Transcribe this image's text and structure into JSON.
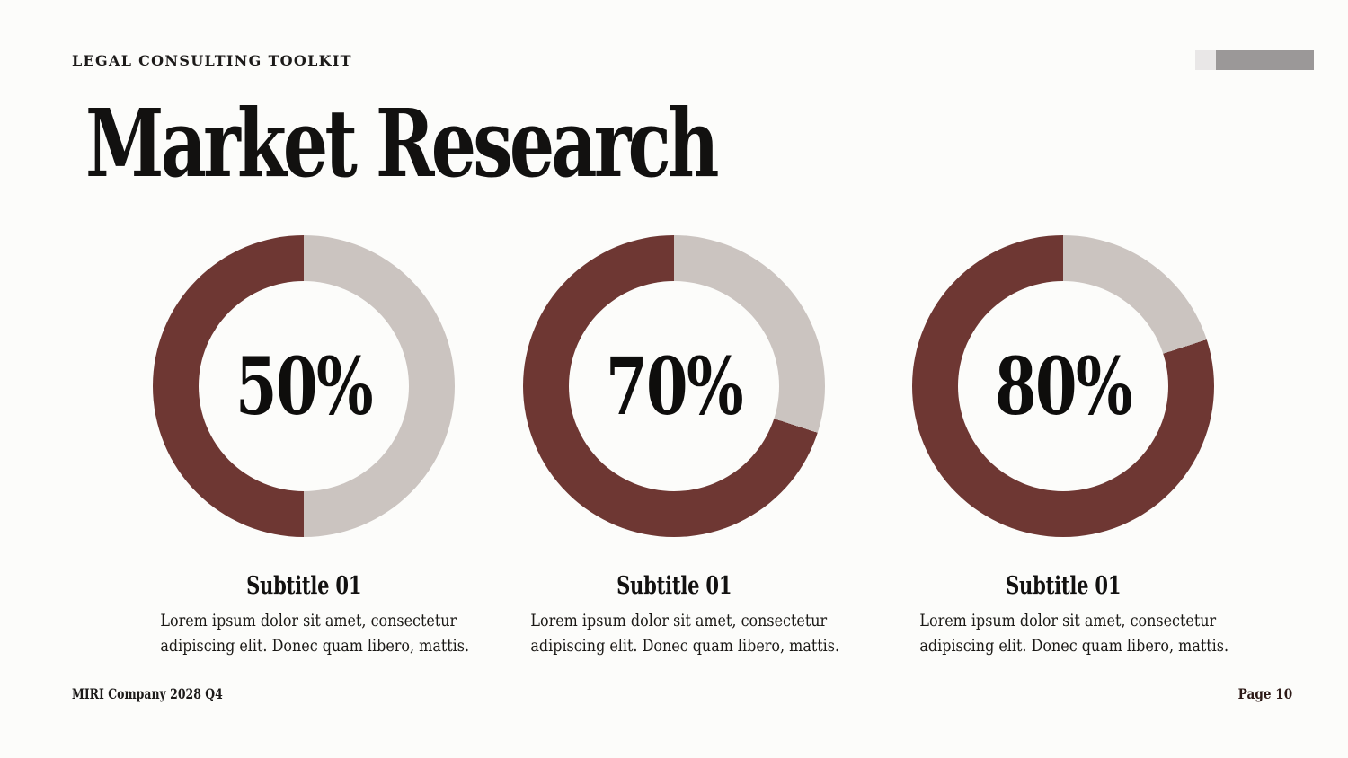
{
  "header": {
    "eyebrow": "LEGAL CONSULTING TOOLKIT",
    "title": "Market Research"
  },
  "progress_bar": {
    "track_color": "#e9e7e7",
    "fill_color": "#9b9898"
  },
  "colors": {
    "background": "#fcfcfa",
    "accent_maroon": "#6e3733",
    "donut_track_gray": "#cbc4c0",
    "text_black": "#171513",
    "page_number_maroon": "#2d1a17"
  },
  "footer": {
    "left": "MIRI Company 2028 Q4",
    "right": "Page 10"
  },
  "chart_data": {
    "type": "pie",
    "variant": "donut",
    "fill_color": "#6e3733",
    "track_color": "#cbc4c0",
    "fill_direction": "counterclockwise-from-top",
    "items": [
      {
        "value": 50,
        "label": "50%",
        "subtitle": "Subtitle 01",
        "lines": [
          "Lorem ipsum dolor sit amet, consectetur",
          "adipiscing elit. Donec quam libero, mattis."
        ]
      },
      {
        "value": 70,
        "label": "70%",
        "subtitle": "Subtitle 01",
        "lines": [
          "Lorem ipsum dolor sit amet, consectetur",
          "adipiscing elit. Donec quam libero, mattis."
        ]
      },
      {
        "value": 80,
        "label": "80%",
        "subtitle": "Subtitle 01",
        "lines": [
          "Lorem ipsum dolor sit amet, consectetur",
          "adipiscing elit. Donec quam libero, mattis."
        ]
      }
    ]
  }
}
